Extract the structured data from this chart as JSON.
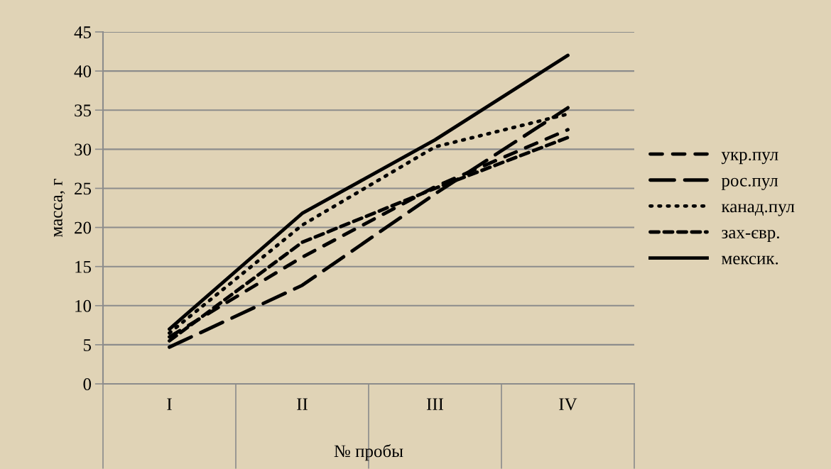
{
  "chart_data": {
    "type": "line",
    "xlabel": "№ пробы",
    "ylabel": "масса, г",
    "categories": [
      "I",
      "II",
      "III",
      "IV"
    ],
    "series": [
      {
        "name": "укр.пул",
        "color": "#000000",
        "line_style": "dashed",
        "values": [
          6.0,
          16.2,
          25.2,
          32.5
        ]
      },
      {
        "name": "рос.пул",
        "color": "#000000",
        "line_style": "longdash",
        "values": [
          4.7,
          12.6,
          24.3,
          35.3
        ]
      },
      {
        "name": "канад.пул",
        "color": "#000000",
        "line_style": "dotted",
        "values": [
          6.5,
          20.3,
          30.3,
          34.5
        ]
      },
      {
        "name": "зах-євр.",
        "color": "#000000",
        "line_style": "shortdash",
        "values": [
          5.5,
          18.1,
          25.0,
          31.5
        ]
      },
      {
        "name": "мексик.",
        "color": "#000000",
        "line_style": "solid",
        "values": [
          7.0,
          21.8,
          31.2,
          42.0
        ]
      }
    ],
    "ylim": [
      0,
      45
    ],
    "yticks": [
      0,
      5,
      10,
      15,
      20,
      25,
      30,
      35,
      40,
      45
    ],
    "grid": "y",
    "legend": "right",
    "marker": "none"
  }
}
